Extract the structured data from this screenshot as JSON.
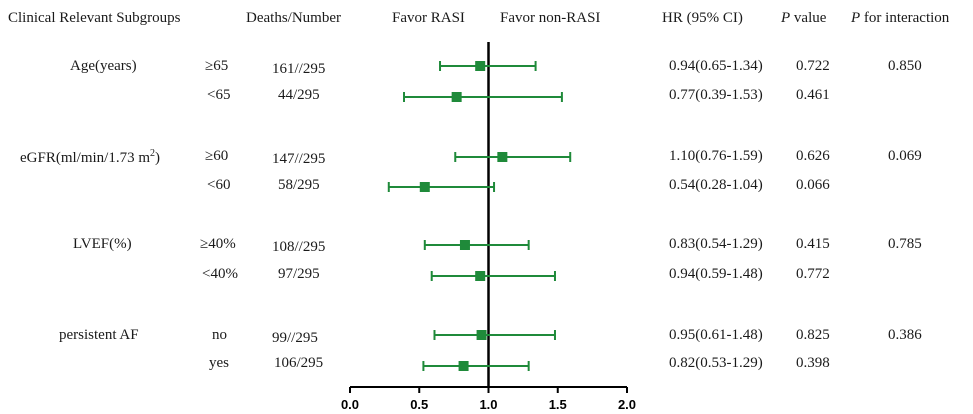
{
  "headers": {
    "subgroups": "Clinical Relevant Subgroups",
    "deaths": "Deaths/Number",
    "favor_left": "Favor RASI",
    "favor_right": "Favor non-RASI",
    "hr": "HR (95% CI)",
    "p_italic": "P",
    "p_rest": " value",
    "pint_italic": "P",
    "pint_rest": " for interaction"
  },
  "groups": [
    {
      "name": "Age(years)",
      "interaction": "0.850"
    },
    {
      "name_main": "eGFR(ml/min/1.73 m",
      "name_sup": "2",
      "name_end": ")",
      "interaction": "0.069"
    },
    {
      "name": "LVEF(%)",
      "interaction": "0.785"
    },
    {
      "name": "persistent AF",
      "interaction": "0.386"
    }
  ],
  "rows": [
    {
      "sub": "≥65",
      "deaths": "161//295",
      "hr_text": "0.94(0.65-1.34)",
      "p": "0.722"
    },
    {
      "sub": "<65",
      "deaths": "44/295",
      "hr_text": "0.77(0.39-1.53)",
      "p": "0.461"
    },
    {
      "sub": "≥60",
      "deaths": "147//295",
      "hr_text": "1.10(0.76-1.59)",
      "p": "0.626"
    },
    {
      "sub": "<60",
      "deaths": "58/295",
      "hr_text": "0.54(0.28-1.04)",
      "p": "0.066"
    },
    {
      "sub": "≥40%",
      "deaths": "108//295",
      "hr_text": "0.83(0.54-1.29)",
      "p": "0.415"
    },
    {
      "sub": "<40%",
      "deaths": "97/295",
      "hr_text": "0.94(0.59-1.48)",
      "p": "0.772"
    },
    {
      "sub": "no",
      "deaths": "99//295",
      "hr_text": "0.95(0.61-1.48)",
      "p": "0.825"
    },
    {
      "sub": "yes",
      "deaths": "106/295",
      "hr_text": "0.82(0.53-1.29)",
      "p": "0.398"
    }
  ],
  "colors": {
    "marker": "#1f8a3a",
    "axis": "#000000"
  },
  "chart_data": {
    "type": "forest",
    "xlim": [
      0.0,
      2.0
    ],
    "xticks": [
      "0.0",
      "0.5",
      "1.0",
      "1.5",
      "2.0"
    ],
    "reference_line": 1.0,
    "points": [
      {
        "hr": 0.94,
        "lo": 0.65,
        "hi": 1.34
      },
      {
        "hr": 0.77,
        "lo": 0.39,
        "hi": 1.53
      },
      {
        "hr": 1.1,
        "lo": 0.76,
        "hi": 1.59
      },
      {
        "hr": 0.54,
        "lo": 0.28,
        "hi": 1.04
      },
      {
        "hr": 0.83,
        "lo": 0.54,
        "hi": 1.29
      },
      {
        "hr": 0.94,
        "lo": 0.59,
        "hi": 1.48
      },
      {
        "hr": 0.95,
        "lo": 0.61,
        "hi": 1.48
      },
      {
        "hr": 0.82,
        "lo": 0.53,
        "hi": 1.29
      }
    ]
  }
}
